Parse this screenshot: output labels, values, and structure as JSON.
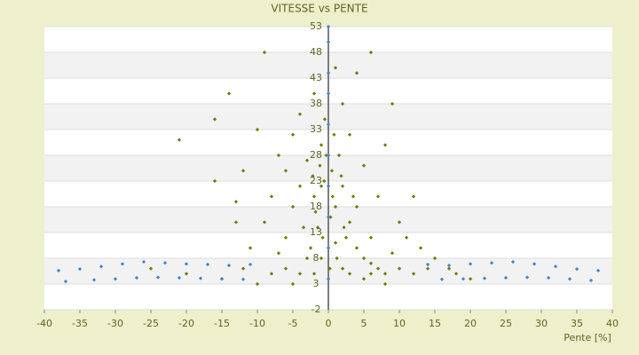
{
  "chart_data": {
    "type": "scatter",
    "title": "VITESSE vs PENTE",
    "xlabel": "Pente [%]",
    "xlim": [
      -40,
      40
    ],
    "xticks": [
      -40,
      -35,
      -30,
      -25,
      -20,
      -15,
      -10,
      -5,
      0,
      5,
      10,
      15,
      20,
      25,
      30,
      35,
      40
    ],
    "ylim": [
      -2,
      53
    ],
    "yticks": [
      -2,
      3,
      8,
      13,
      18,
      23,
      28,
      33,
      38,
      43,
      48,
      53
    ],
    "grid": true,
    "series": [
      {
        "color": "#6b7d00",
        "x": [
          -1,
          0.5,
          -2,
          1,
          -3,
          2,
          -0.5,
          3,
          -4,
          1.5,
          -1.5,
          0,
          4,
          5,
          6,
          -5,
          -6,
          -7,
          -8,
          -9,
          -10,
          -12,
          -13,
          -11,
          -3,
          -2,
          2,
          3,
          7,
          8,
          10,
          12,
          9,
          6,
          4,
          3,
          2,
          -2,
          1,
          4,
          -5,
          -6,
          -8,
          -10,
          -15,
          -20,
          -25,
          -14,
          -9,
          6,
          9,
          -21,
          -16,
          -4,
          5,
          7,
          10,
          11,
          13,
          15,
          17,
          20,
          -1,
          0.3,
          -0.8,
          1.2,
          -2.5,
          2.5,
          -3.5,
          3.5,
          -1.2,
          0.8,
          -0.3,
          1.8,
          -1.8,
          0.6,
          -0.6,
          2.2,
          -2.2,
          1,
          -1,
          0.2,
          5,
          -5,
          8,
          -6,
          -4,
          6,
          14,
          18,
          -12,
          -7,
          -13,
          12,
          -16,
          8
        ],
        "y": [
          30,
          25,
          20,
          18,
          27,
          22,
          35,
          15,
          22,
          28,
          14,
          10,
          10,
          8,
          7,
          18,
          25,
          28,
          20,
          15,
          33,
          25,
          15,
          10,
          8,
          5,
          6,
          5,
          6,
          5,
          6,
          5,
          9,
          12,
          18,
          32,
          38,
          40,
          45,
          44,
          32,
          12,
          5,
          3,
          4,
          5,
          6,
          40,
          48,
          48,
          38,
          31,
          35,
          36,
          26,
          20,
          15,
          12,
          10,
          8,
          6,
          4,
          22,
          16,
          12,
          8,
          10,
          12,
          14,
          20,
          26,
          32,
          28,
          24,
          17,
          20,
          23,
          14,
          24,
          11,
          8,
          6,
          4,
          3,
          3,
          6,
          5,
          5,
          6,
          5,
          6,
          9,
          19,
          20,
          23,
          30
        ]
      },
      {
        "color": "#3a86d4",
        "x": [
          -38,
          -35,
          -32,
          -29,
          -26,
          -23,
          -20,
          -17,
          -14,
          -11,
          14,
          17,
          20,
          23,
          26,
          29,
          32,
          35,
          38,
          -37,
          -33,
          -30,
          -27,
          -24,
          -21,
          -18,
          -15,
          -12,
          16,
          19,
          22,
          25,
          28,
          31,
          34,
          37,
          0,
          0,
          0,
          0,
          0,
          0,
          0,
          0,
          0,
          0
        ],
        "y": [
          5.6,
          5.9,
          6.4,
          6.9,
          7.3,
          7.1,
          6.9,
          6.8,
          6.6,
          6.8,
          6.8,
          6.6,
          6.9,
          7.1,
          7.3,
          6.9,
          6.4,
          5.9,
          5.6,
          3.5,
          3.8,
          4.0,
          4.2,
          4.3,
          4.2,
          4.1,
          4.0,
          3.9,
          3.9,
          4.0,
          4.1,
          4.2,
          4.3,
          4.2,
          4.0,
          3.7,
          4,
          10,
          16,
          22,
          28,
          34,
          40,
          44,
          50,
          53
        ]
      }
    ]
  }
}
